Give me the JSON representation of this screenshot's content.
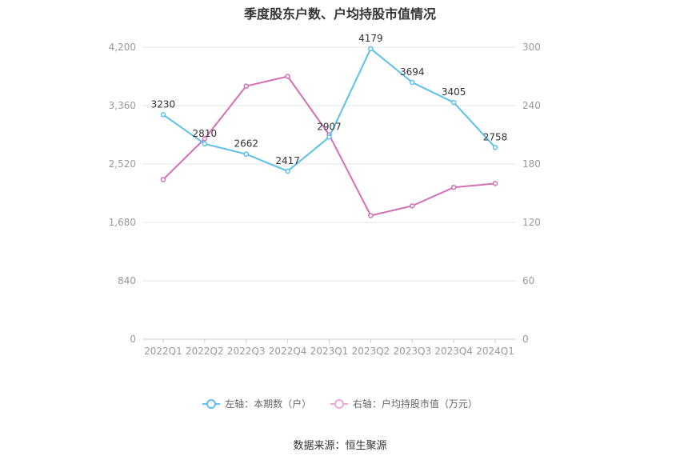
{
  "chart_data": {
    "type": "line",
    "title": "季度股东户数、户均持股市值情况",
    "categories": [
      "2022Q1",
      "2022Q2",
      "2022Q3",
      "2022Q4",
      "2023Q1",
      "2023Q2",
      "2023Q3",
      "2023Q4",
      "2024Q1"
    ],
    "left_axis": {
      "ticks": [
        "0",
        "840",
        "1,680",
        "2,520",
        "3,360",
        "4,200"
      ],
      "min": 0,
      "max": 4200
    },
    "right_axis": {
      "ticks": [
        "0",
        "60",
        "120",
        "180",
        "240",
        "300"
      ],
      "min": 0,
      "max": 300
    },
    "grid": true,
    "legend_position": "bottom",
    "series": [
      {
        "name": "左轴：本期数（户）",
        "axis": "left",
        "color": "#5bc0eb",
        "values": [
          3230,
          2810,
          2662,
          2417,
          2907,
          4179,
          3694,
          3405,
          2758
        ],
        "labels": [
          "3230",
          "2810",
          "2662",
          "2417",
          "2907",
          "4179",
          "3694",
          "3405",
          "2758"
        ]
      },
      {
        "name": "右轴：户均持股市值（万元）",
        "axis": "right",
        "color": "#d36fb5",
        "values": [
          164,
          206,
          260,
          270,
          210,
          127,
          137,
          156,
          160
        ]
      }
    ]
  },
  "source": "数据来源：恒生聚源"
}
